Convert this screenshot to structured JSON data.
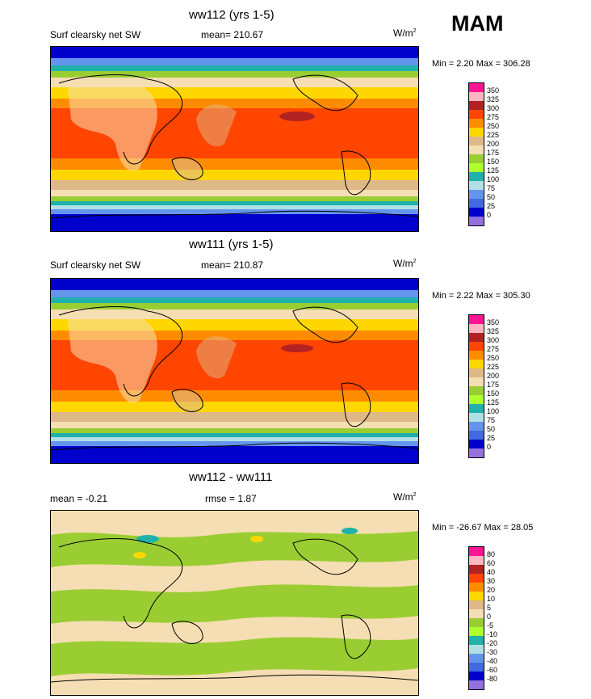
{
  "season": "MAM",
  "panels": [
    {
      "title": "ww112 (yrs 1-5)",
      "left_text": "Surf clearsky net SW",
      "center_text": "mean= 210.67",
      "units_base": "W/m",
      "units_exp": "2",
      "minmax": "Min =   2.20 Max = 306.28",
      "legend_labels": [
        "350",
        "325",
        "300",
        "275",
        "250",
        "225",
        "200",
        "175",
        "150",
        "125",
        "100",
        "75",
        "50",
        "25",
        "0"
      ]
    },
    {
      "title": "ww111 (yrs 1-5)",
      "left_text": "Surf clearsky net SW",
      "center_text": "mean= 210.87",
      "units_base": "W/m",
      "units_exp": "2",
      "minmax": "Min =   2.22 Max = 305.30",
      "legend_labels": [
        "350",
        "325",
        "300",
        "275",
        "250",
        "225",
        "200",
        "175",
        "150",
        "125",
        "100",
        "75",
        "50",
        "25",
        "0"
      ]
    },
    {
      "title": "ww112 - ww111",
      "left_text": "mean =  -0.21",
      "center_text": "rmse =   1.87",
      "units_base": "W/m",
      "units_exp": "2",
      "minmax": "Min = -26.67 Max =  28.05",
      "legend_labels": [
        "80",
        "60",
        "40",
        "30",
        "20",
        "10",
        "5",
        "0",
        "-5",
        "-10",
        "-20",
        "-30",
        "-40",
        "-60",
        "-80"
      ]
    }
  ],
  "colors": {
    "abs_scale": [
      "#ff1493",
      "#ffb6c1",
      "#b22222",
      "#ff4500",
      "#ff8c00",
      "#ffd700",
      "#deb887",
      "#f5deb3",
      "#9acd32",
      "#adff2f",
      "#20b2aa",
      "#b0e0e6",
      "#6495ed",
      "#4169e1",
      "#0000cd",
      "#9370db"
    ],
    "diff_scale": [
      "#ff1493",
      "#ffb6c1",
      "#b22222",
      "#ff4500",
      "#ff8c00",
      "#ffd700",
      "#deb887",
      "#f5deb3",
      "#9acd32",
      "#adff2f",
      "#20b2aa",
      "#b0e0e6",
      "#6495ed",
      "#4169e1",
      "#0000cd",
      "#9370db"
    ]
  },
  "chart_data": [
    {
      "type": "heatmap",
      "title": "ww112 (yrs 1-5)",
      "variable": "Surf clearsky net SW",
      "units": "W/m2",
      "mean": 210.67,
      "min": 2.2,
      "max": 306.28,
      "contour_levels": [
        0,
        25,
        50,
        75,
        100,
        125,
        150,
        175,
        200,
        225,
        250,
        275,
        300,
        325,
        350
      ]
    },
    {
      "type": "heatmap",
      "title": "ww111 (yrs 1-5)",
      "variable": "Surf clearsky net SW",
      "units": "W/m2",
      "mean": 210.87,
      "min": 2.22,
      "max": 305.3,
      "contour_levels": [
        0,
        25,
        50,
        75,
        100,
        125,
        150,
        175,
        200,
        225,
        250,
        275,
        300,
        325,
        350
      ]
    },
    {
      "type": "heatmap",
      "title": "ww112 - ww111",
      "units": "W/m2",
      "mean": -0.21,
      "rmse": 1.87,
      "min": -26.67,
      "max": 28.05,
      "contour_levels": [
        -80,
        -60,
        -40,
        -30,
        -20,
        -10,
        -5,
        0,
        5,
        10,
        20,
        30,
        40,
        60,
        80
      ]
    }
  ]
}
